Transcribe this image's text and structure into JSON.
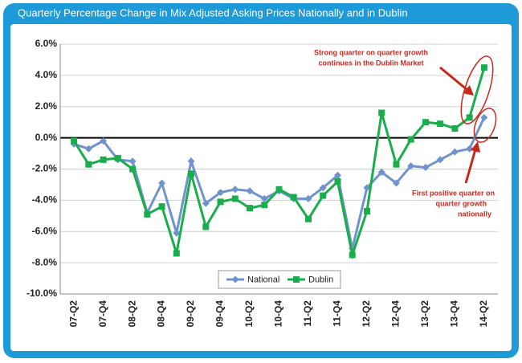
{
  "chart_data": {
    "type": "line",
    "title": "Quarterly Percentage Change in Mix Adjusted Asking Prices Nationally and in Dublin",
    "categories": [
      "07-Q2",
      null,
      "07-Q4",
      null,
      "08-Q2",
      null,
      "08-Q4",
      null,
      "09-Q2",
      null,
      "09-Q4",
      null,
      "10-Q2",
      null,
      "10-Q4",
      null,
      "11-Q2",
      null,
      "11-Q4",
      null,
      "12-Q2",
      null,
      "12-Q4",
      null,
      "13-Q2",
      null,
      "13-Q4",
      null,
      "14-Q2"
    ],
    "series": [
      {
        "name": "National",
        "color": "#6f93cc",
        "marker": "diamond",
        "values": [
          -0.4,
          -0.7,
          -0.2,
          -1.4,
          -1.5,
          -4.8,
          -2.9,
          -6.1,
          -1.5,
          -4.2,
          -3.5,
          -3.3,
          -3.4,
          -3.9,
          -3.4,
          -3.9,
          -3.9,
          -3.2,
          -2.4,
          -7.1,
          -3.2,
          -2.2,
          -2.9,
          -1.8,
          -1.9,
          -1.4,
          -0.9,
          -0.7,
          1.3
        ]
      },
      {
        "name": "Dublin",
        "color": "#1aad4b",
        "marker": "square",
        "values": [
          -0.2,
          -1.7,
          -1.4,
          -1.3,
          -2.0,
          -4.9,
          -4.4,
          -7.4,
          -2.3,
          -5.7,
          -4.1,
          -3.9,
          -4.5,
          -4.3,
          -3.3,
          -3.8,
          -5.2,
          -3.7,
          -2.8,
          -7.5,
          -4.7,
          1.6,
          -1.7,
          -0.1,
          1.0,
          0.9,
          0.6,
          1.3,
          4.5
        ]
      }
    ],
    "ylim": [
      -10,
      6
    ],
    "yticks": [
      {
        "value": -10,
        "label": "-10.0%"
      },
      {
        "value": -8,
        "label": "-8.0%"
      },
      {
        "value": -6,
        "label": "-6.0%"
      },
      {
        "value": -4,
        "label": "-4.0%"
      },
      {
        "value": -2,
        "label": "-2.0%"
      },
      {
        "value": 0,
        "label": "0.0%"
      },
      {
        "value": 2,
        "label": "2.0%"
      },
      {
        "value": 4,
        "label": "4.0%"
      },
      {
        "value": 6,
        "label": "6.0%"
      }
    ],
    "grid": true,
    "legend": "bottom",
    "annotations": [
      {
        "lines": [
          "Strong quarter on quarter  growth",
          "continues in the Dublin Market"
        ]
      },
      {
        "lines": [
          "First positive quarter on",
          "quarter growth",
          "nationally"
        ]
      }
    ]
  }
}
